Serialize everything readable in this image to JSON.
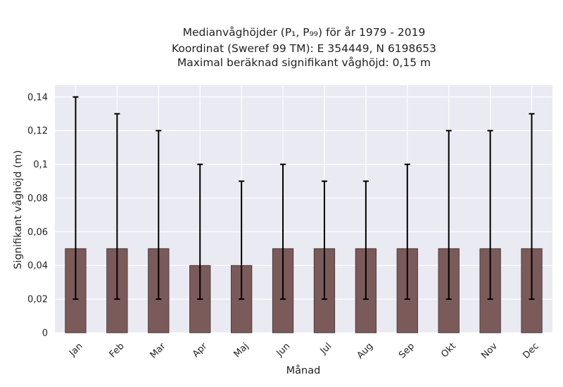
{
  "chart_data": {
    "type": "bar",
    "title_lines": [
      "Medianvåghöjder (P₁, P₉₉) för år 1979 - 2019",
      "Koordinat (Sweref 99 TM): E 354449, N 6198653",
      "Maximal beräknad signifikant våghöjd: 0,15 m"
    ],
    "xlabel": "Månad",
    "ylabel": "Signifikant våghöjd (m)",
    "categories": [
      "Jan",
      "Feb",
      "Mar",
      "Apr",
      "Maj",
      "Jun",
      "Jul",
      "Aug",
      "Sep",
      "Okt",
      "Nov",
      "Dec"
    ],
    "values": [
      0.05,
      0.05,
      0.05,
      0.04,
      0.04,
      0.05,
      0.05,
      0.05,
      0.05,
      0.05,
      0.05,
      0.05
    ],
    "p1": [
      0.02,
      0.02,
      0.02,
      0.02,
      0.02,
      0.02,
      0.02,
      0.02,
      0.02,
      0.02,
      0.02,
      0.02
    ],
    "p99": [
      0.14,
      0.13,
      0.12,
      0.1,
      0.09,
      0.1,
      0.09,
      0.09,
      0.1,
      0.12,
      0.12,
      0.13
    ],
    "ylim": [
      0,
      0.147
    ],
    "yticks": [
      0,
      0.02,
      0.04,
      0.06,
      0.08,
      0.1,
      0.12,
      0.14
    ],
    "ytick_labels": [
      "0",
      "0,02",
      "0,04",
      "0,06",
      "0,08",
      "0,1",
      "0,12",
      "0,14"
    ],
    "grid": true,
    "colors": {
      "bar": "#7b5a5a",
      "bar_edge": "#3f3030",
      "error_bar": "#000000",
      "plot_background": "#eaeaf2",
      "grid": "#ffffff"
    }
  }
}
